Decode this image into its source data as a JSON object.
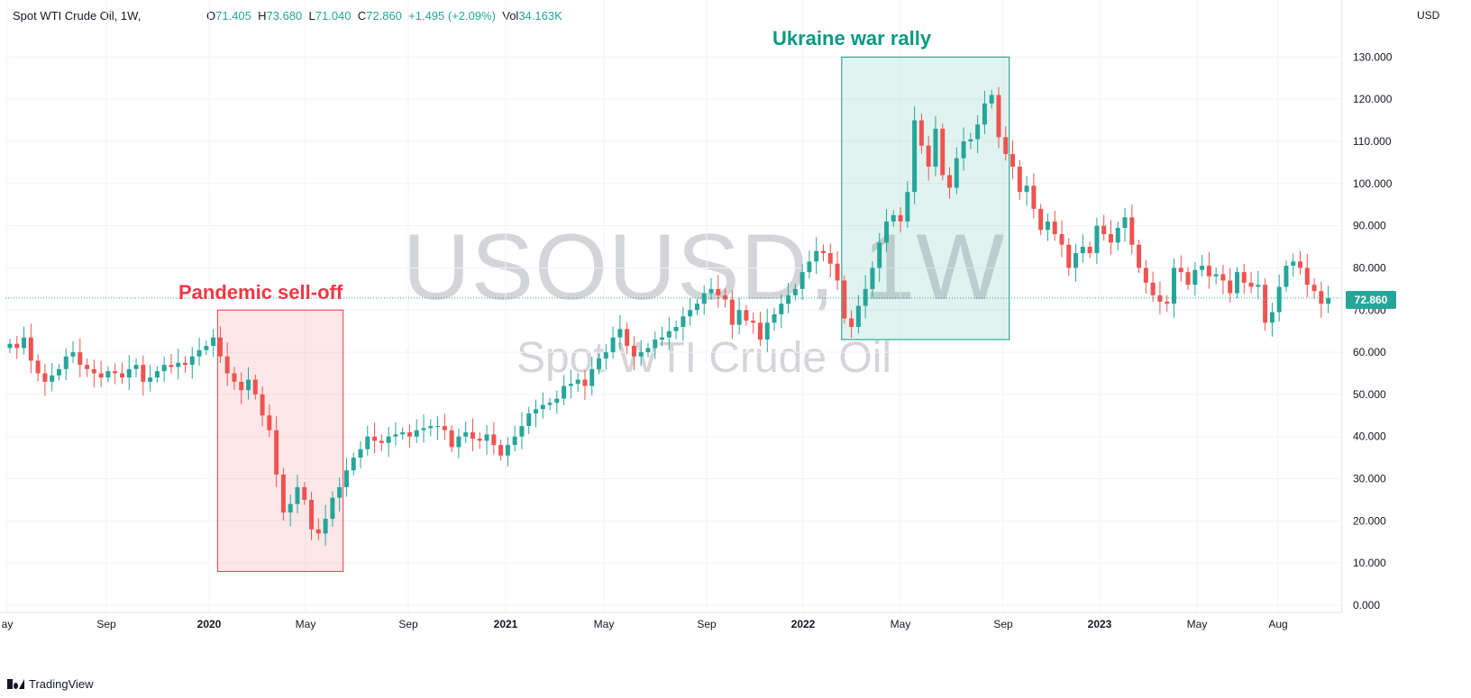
{
  "header": {
    "symbol_line": "Spot WTI Crude Oil, 1W,",
    "open_label": "O",
    "open": "71.405",
    "high_label": "H",
    "high": "73.680",
    "low_label": "L",
    "low": "71.040",
    "close_label": "C",
    "close": "72.860",
    "change": "+1.495 (+2.09%)",
    "vol_label": "Vol",
    "volume": "34.163K"
  },
  "currency": "USD",
  "watermark": {
    "line1": "USOUSD, 1W",
    "line2": "Spot WTI Crude Oil"
  },
  "annotations": {
    "pandemic": {
      "label": "Pandemic sell-off",
      "color": "#f23645"
    },
    "ukraine": {
      "label": "Ukraine war rally",
      "color": "#089981"
    }
  },
  "last_price": {
    "label": "72.860",
    "value": 72.86
  },
  "branding": {
    "text": "TradingView"
  },
  "colors": {
    "up": "#26a69a",
    "down": "#ef5350",
    "grid": "#f0f3fa",
    "axis_text": "#131722"
  },
  "chart_data": {
    "type": "candlestick",
    "x_tick_labels": [
      "ay",
      "Sep",
      "2020",
      "May",
      "Sep",
      "2021",
      "May",
      "Sep",
      "2022",
      "May",
      "Sep",
      "2023",
      "May",
      "Aug"
    ],
    "x_tick_bold": [
      false,
      false,
      true,
      false,
      false,
      true,
      false,
      false,
      true,
      false,
      false,
      true,
      false,
      false
    ],
    "y_ticks": [
      0,
      10,
      20,
      30,
      40,
      50,
      60,
      70,
      80,
      90,
      100,
      110,
      120,
      130
    ],
    "y_tick_labels": [
      "0.000",
      "10.000",
      "20.000",
      "30.000",
      "40.000",
      "50.000",
      "60.000",
      "70.000",
      "80.000",
      "90.000",
      "100.000",
      "110.000",
      "120.000",
      "130.000"
    ],
    "ylim": [
      0,
      137
    ],
    "regions": [
      {
        "name": "pandemic",
        "start_week": 30,
        "end_week": 47,
        "y_range": [
          8,
          70
        ]
      },
      {
        "name": "ukraine",
        "start_week": 119,
        "end_week": 142,
        "y_range": [
          63,
          130
        ]
      }
    ],
    "weeks_total": 205,
    "closes": [
      62.0,
      61.0,
      63.5,
      58.0,
      55.0,
      53.0,
      54.5,
      56.0,
      59.0,
      60.0,
      57.0,
      56.0,
      55.0,
      54.0,
      55.5,
      55.0,
      54.0,
      56.0,
      57.0,
      53.0,
      54.0,
      55.5,
      57.0,
      56.5,
      57.5,
      57.0,
      59.0,
      60.5,
      61.5,
      63.5,
      59.0,
      55.0,
      53.0,
      51.0,
      53.5,
      50.0,
      45.0,
      41.5,
      31.0,
      22.0,
      24.0,
      28.0,
      25.0,
      18.0,
      17.0,
      20.5,
      25.5,
      28.0,
      32.0,
      35.0,
      37.0,
      40.0,
      39.0,
      38.5,
      40.0,
      40.5,
      41.0,
      40.0,
      41.5,
      42.0,
      42.5,
      42.5,
      41.5,
      37.5,
      40.0,
      41.0,
      39.5,
      39.0,
      40.5,
      38.0,
      35.5,
      38.0,
      40.0,
      42.5,
      45.5,
      46.5,
      47.5,
      48.0,
      49.0,
      52.0,
      52.5,
      53.5,
      52.0,
      56.0,
      58.5,
      60.0,
      63.5,
      65.5,
      61.5,
      59.0,
      60.0,
      61.0,
      63.0,
      63.5,
      65.0,
      66.0,
      68.5,
      70.0,
      71.5,
      74.0,
      75.0,
      73.5,
      72.5,
      66.5,
      70.0,
      67.5,
      67.0,
      63.0,
      67.0,
      69.0,
      71.5,
      73.5,
      75.0,
      79.0,
      81.5,
      84.0,
      83.5,
      81.0,
      77.0,
      68.0,
      66.0,
      71.0,
      75.0,
      80.0,
      86.0,
      91.0,
      92.5,
      91.0,
      98.0,
      115.0,
      109.0,
      104.0,
      113.0,
      102.0,
      99.0,
      106.0,
      110.0,
      110.5,
      114.0,
      119.0,
      121.0,
      111.0,
      107.0,
      104.0,
      98.0,
      99.5,
      94.0,
      89.0,
      91.0,
      88.0,
      85.5,
      80.0,
      83.5,
      85.0,
      83.5,
      90.0,
      88.0,
      86.0,
      89.5,
      92.0,
      85.5,
      80.0,
      76.5,
      73.5,
      72.0,
      71.5,
      80.0,
      79.0,
      76.0,
      79.5,
      80.5,
      78.0,
      78.5,
      77.0,
      74.0,
      79.0,
      76.5,
      75.5,
      76.0,
      67.0,
      69.5,
      75.5,
      80.5,
      81.5,
      80.0,
      76.0,
      74.5,
      71.5,
      72.86
    ]
  }
}
